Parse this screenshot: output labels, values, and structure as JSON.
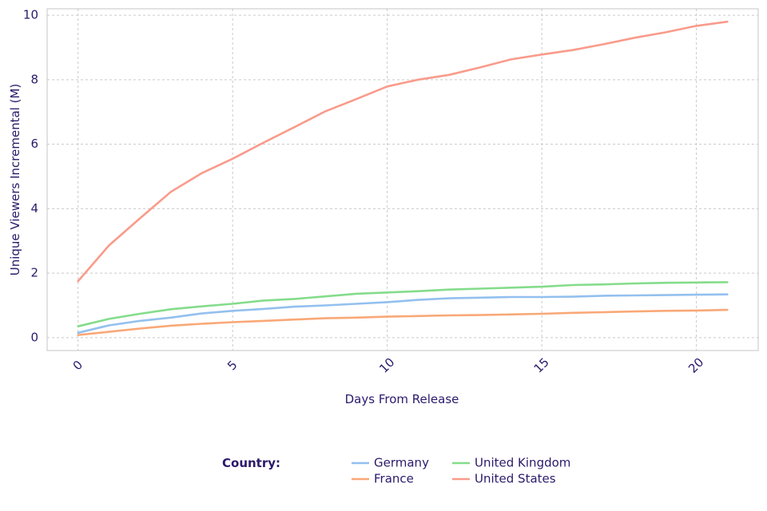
{
  "chart_data": {
    "type": "line",
    "title": "",
    "xlabel": "Days From Release",
    "ylabel": "Unique Viewers Incremental (M)",
    "xlim": [
      -1,
      22
    ],
    "ylim": [
      -0.4,
      10.2
    ],
    "xticks": [
      0,
      5,
      10,
      15,
      20
    ],
    "yticks": [
      0,
      2,
      4,
      6,
      8,
      10
    ],
    "grid": true,
    "legend": {
      "title": "Country:",
      "placement": "bottom"
    },
    "x": [
      0,
      1,
      2,
      3,
      4,
      5,
      6,
      7,
      8,
      9,
      10,
      11,
      12,
      13,
      14,
      15,
      16,
      17,
      18,
      19,
      20,
      21
    ],
    "series": [
      {
        "name": "Germany",
        "color": "#93c0ee",
        "values": [
          0.15,
          0.38,
          0.52,
          0.62,
          0.75,
          0.83,
          0.89,
          0.96,
          1.0,
          1.05,
          1.1,
          1.17,
          1.22,
          1.24,
          1.26,
          1.26,
          1.27,
          1.3,
          1.31,
          1.32,
          1.33,
          1.34
        ]
      },
      {
        "name": "France",
        "color": "#f9a877",
        "values": [
          0.08,
          0.18,
          0.28,
          0.37,
          0.43,
          0.48,
          0.52,
          0.56,
          0.6,
          0.62,
          0.65,
          0.67,
          0.69,
          0.7,
          0.72,
          0.74,
          0.77,
          0.79,
          0.81,
          0.83,
          0.84,
          0.86
        ]
      },
      {
        "name": "United Kingdom",
        "color": "#84dc8b",
        "values": [
          0.35,
          0.58,
          0.74,
          0.88,
          0.97,
          1.05,
          1.15,
          1.2,
          1.28,
          1.36,
          1.4,
          1.44,
          1.49,
          1.52,
          1.55,
          1.58,
          1.63,
          1.65,
          1.68,
          1.7,
          1.71,
          1.72
        ]
      },
      {
        "name": "United States",
        "color": "#f99b8b",
        "values": [
          1.75,
          2.86,
          3.7,
          4.52,
          5.1,
          5.55,
          6.05,
          6.53,
          7.02,
          7.4,
          7.79,
          8.0,
          8.15,
          8.38,
          8.63,
          8.78,
          8.92,
          9.1,
          9.3,
          9.47,
          9.67,
          9.8
        ]
      }
    ]
  }
}
